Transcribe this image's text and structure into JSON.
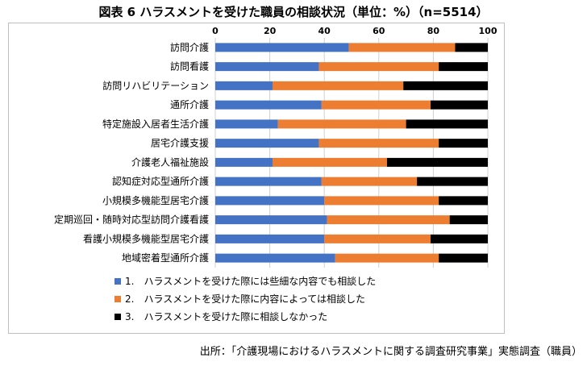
{
  "title": "図表 6 ハラスメントを受けた職員の相談状況（単位：%）（n=5514）",
  "source": "出所：「介護現場におけるハラスメントに関する調査研究事業」実態調査（職員）",
  "colors": {
    "s1": "#4472C4",
    "s2": "#ED7D31",
    "s3": "#000000",
    "grid": "#d0d0d0"
  },
  "chart_data": {
    "type": "bar",
    "orientation": "horizontal",
    "stacked": true,
    "title": "図表 6 ハラスメントを受けた職員の相談状況（単位：%）（n=5514）",
    "xlim": [
      0,
      100
    ],
    "x_ticks": [
      "0",
      "20",
      "40",
      "60",
      "80",
      "100"
    ],
    "x_axis_position": "top",
    "grid": true,
    "legend_position": "bottom",
    "categories": [
      "訪問介護",
      "訪問看護",
      "訪問リハビリテーション",
      "通所介護",
      "特定施設入居者生活介護",
      "居宅介護支援",
      "介護老人福祉施設",
      "認知症対応型通所介護",
      "小規模多機能型居宅介護",
      "定期巡回・随時対応型訪問介護看護",
      "看護小規模多機能型居宅介護",
      "地域密着型通所介護"
    ],
    "series": [
      {
        "name": "1.　ハラスメントを受けた際には些細な内容でも相談した",
        "values": [
          49,
          38,
          21,
          39,
          23,
          38,
          21,
          39,
          40,
          41,
          40,
          44
        ]
      },
      {
        "name": "2.　ハラスメントを受けた際に内容によっては相談した",
        "values": [
          39,
          44,
          48,
          40,
          47,
          44,
          42,
          35,
          42,
          45,
          39,
          38
        ]
      },
      {
        "name": "3.　ハラスメントを受けた際に相談しなかった",
        "values": [
          12,
          18,
          31,
          21,
          30,
          18,
          37,
          26,
          18,
          14,
          21,
          18
        ]
      }
    ]
  }
}
